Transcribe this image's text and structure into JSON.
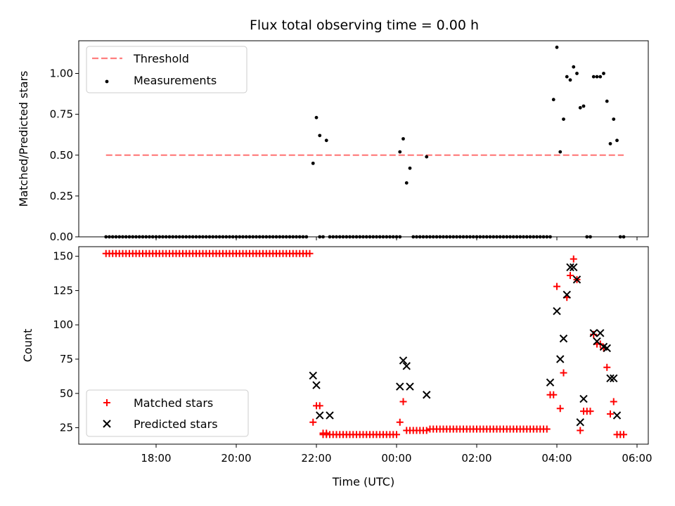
{
  "title": "Flux total observing time = 0.00 h",
  "chart_data": [
    {
      "type": "scatter",
      "panel": "top",
      "ylabel": "Matched/Predicted stars",
      "xlabel": "",
      "ylim": [
        0,
        1.2
      ],
      "yticks": [
        0.0,
        0.25,
        0.5,
        0.75,
        1.0
      ],
      "ytick_labels": [
        "0.00",
        "0.25",
        "0.50",
        "0.75",
        "1.00"
      ],
      "legend": {
        "placement": "top-left",
        "entries": [
          "Threshold",
          "Measurements"
        ]
      },
      "threshold": {
        "name": "Threshold",
        "y": 0.5,
        "x_start": "16:45",
        "x_end": "05:40",
        "color": "#ff7f7f",
        "style": "dashed"
      },
      "series": [
        {
          "name": "Measurements",
          "color": "#000000",
          "zero_runs": [
            [
              "16:45",
              "21:45"
            ],
            [
              "22:05",
              "22:10"
            ],
            [
              "22:20",
              "00:05"
            ],
            [
              "00:25",
              "00:45"
            ],
            [
              "00:50",
              "03:50"
            ],
            [
              "04:45",
              "04:50"
            ],
            [
              "05:35",
              "05:40"
            ]
          ],
          "points": [
            [
              "21:55",
              0.45
            ],
            [
              "22:00",
              0.73
            ],
            [
              "22:05",
              0.62
            ],
            [
              "22:15",
              0.59
            ],
            [
              "00:05",
              0.52
            ],
            [
              "00:10",
              0.6
            ],
            [
              "00:15",
              0.33
            ],
            [
              "00:20",
              0.42
            ],
            [
              "00:45",
              0.49
            ],
            [
              "03:55",
              0.84
            ],
            [
              "04:00",
              1.16
            ],
            [
              "04:05",
              0.52
            ],
            [
              "04:10",
              0.72
            ],
            [
              "04:15",
              0.98
            ],
            [
              "04:20",
              0.96
            ],
            [
              "04:25",
              1.04
            ],
            [
              "04:30",
              1.0
            ],
            [
              "04:35",
              0.79
            ],
            [
              "04:40",
              0.8
            ],
            [
              "04:55",
              0.98
            ],
            [
              "05:00",
              0.98
            ],
            [
              "05:05",
              0.98
            ],
            [
              "05:10",
              1.0
            ],
            [
              "05:15",
              0.83
            ],
            [
              "05:20",
              0.57
            ],
            [
              "05:25",
              0.72
            ],
            [
              "05:30",
              0.59
            ]
          ]
        }
      ]
    },
    {
      "type": "scatter",
      "panel": "bottom",
      "ylabel": "Count",
      "xlabel": "Time (UTC)",
      "ylim": [
        13,
        157
      ],
      "yticks": [
        25,
        50,
        75,
        100,
        125,
        150
      ],
      "ytick_labels": [
        "25",
        "50",
        "75",
        "100",
        "125",
        "150"
      ],
      "xticks": [
        "18:00",
        "20:00",
        "22:00",
        "00:00",
        "02:00",
        "04:00",
        "06:00"
      ],
      "legend": {
        "placement": "bottom-left",
        "entries": [
          "Matched stars",
          "Predicted stars"
        ]
      },
      "series": [
        {
          "name": "Matched stars",
          "marker": "plus",
          "color": "#ff0000",
          "runs": [
            {
              "from": "16:45",
              "to": "21:50",
              "value": 152
            },
            {
              "from": "22:10",
              "to": "00:00",
              "value": 20
            },
            {
              "from": "00:20",
              "to": "00:45",
              "value": 23
            },
            {
              "from": "00:50",
              "to": "03:45",
              "value": 24
            }
          ],
          "points": [
            [
              "21:55",
              29
            ],
            [
              "22:00",
              41
            ],
            [
              "22:05",
              41
            ],
            [
              "22:10",
              21
            ],
            [
              "22:15",
              21
            ],
            [
              "00:05",
              29
            ],
            [
              "00:10",
              44
            ],
            [
              "00:15",
              23
            ],
            [
              "03:50",
              49
            ],
            [
              "03:55",
              49
            ],
            [
              "04:00",
              128
            ],
            [
              "04:05",
              39
            ],
            [
              "04:10",
              65
            ],
            [
              "04:15",
              120
            ],
            [
              "04:20",
              136
            ],
            [
              "04:25",
              148
            ],
            [
              "04:30",
              133
            ],
            [
              "04:35",
              23
            ],
            [
              "04:40",
              37
            ],
            [
              "04:45",
              37
            ],
            [
              "04:50",
              37
            ],
            [
              "04:55",
              93
            ],
            [
              "05:00",
              86
            ],
            [
              "05:05",
              86
            ],
            [
              "05:10",
              83
            ],
            [
              "05:15",
              69
            ],
            [
              "05:20",
              35
            ],
            [
              "05:25",
              44
            ],
            [
              "05:30",
              20
            ],
            [
              "05:35",
              20
            ],
            [
              "05:40",
              20
            ]
          ]
        },
        {
          "name": "Predicted stars",
          "marker": "x",
          "color": "#000000",
          "points": [
            [
              "21:55",
              63
            ],
            [
              "22:00",
              56
            ],
            [
              "22:05",
              34
            ],
            [
              "22:20",
              34
            ],
            [
              "00:05",
              55
            ],
            [
              "00:10",
              74
            ],
            [
              "00:15",
              70
            ],
            [
              "00:20",
              55
            ],
            [
              "00:45",
              49
            ],
            [
              "03:50",
              58
            ],
            [
              "04:00",
              110
            ],
            [
              "04:05",
              75
            ],
            [
              "04:10",
              90
            ],
            [
              "04:15",
              122
            ],
            [
              "04:20",
              142
            ],
            [
              "04:25",
              142
            ],
            [
              "04:30",
              133
            ],
            [
              "04:35",
              29
            ],
            [
              "04:40",
              46
            ],
            [
              "04:55",
              94
            ],
            [
              "05:00",
              88
            ],
            [
              "05:05",
              94
            ],
            [
              "05:10",
              84
            ],
            [
              "05:15",
              83
            ],
            [
              "05:20",
              61
            ],
            [
              "05:25",
              61
            ],
            [
              "05:30",
              34
            ]
          ]
        }
      ]
    }
  ]
}
